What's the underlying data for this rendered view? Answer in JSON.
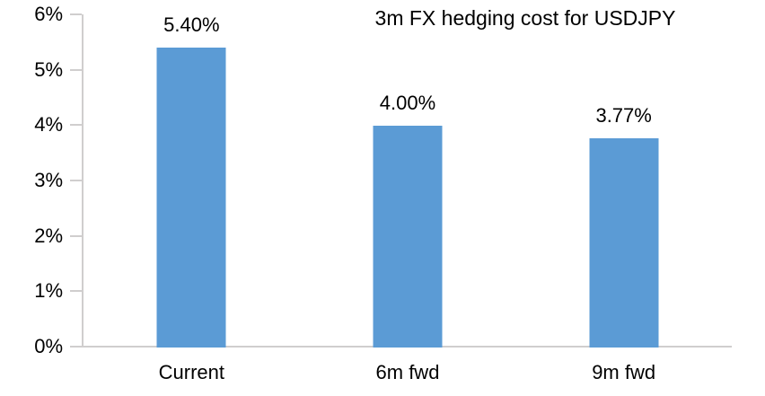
{
  "chart_data": {
    "type": "bar",
    "title": "3m FX hedging cost for USDJPY",
    "categories": [
      "Current",
      "6m fwd",
      "9m fwd"
    ],
    "values": [
      5.4,
      4.0,
      3.77
    ],
    "value_labels": [
      "5.40%",
      "4.00%",
      "3.77%"
    ],
    "xlabel": "",
    "ylabel": "",
    "ylim": [
      0,
      6
    ],
    "ytick_labels_bottom_to_top": [
      "0%",
      "1%",
      "2%",
      "3%",
      "4%",
      "5%",
      "6%"
    ],
    "grid": false,
    "legend": false,
    "bar_color": "#5B9BD5",
    "axis_color": "#D0CECE",
    "text_color": "#000000",
    "background_color": "#FFFFFF"
  }
}
